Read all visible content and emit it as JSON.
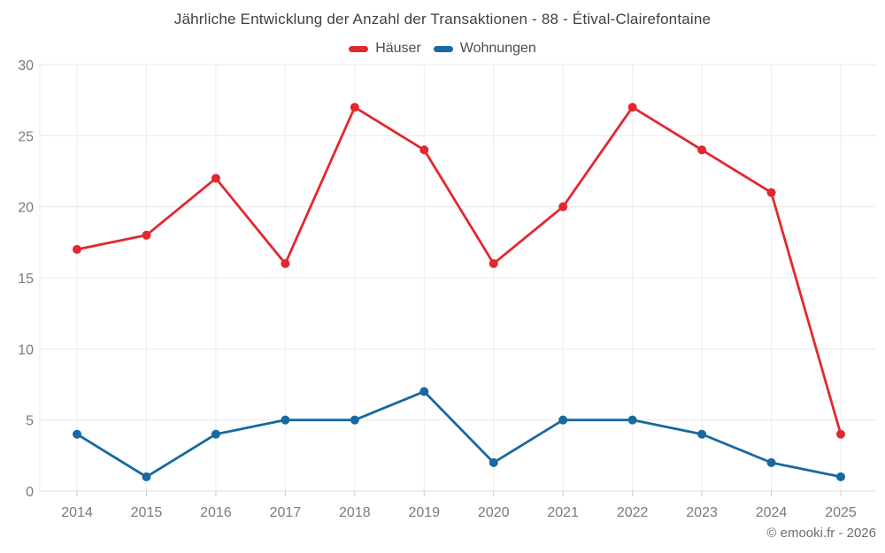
{
  "title": "Jährliche Entwicklung der Anzahl der Transaktionen - 88 - Étival-Clairefontaine",
  "footer": "© emooki.fr - 2026",
  "colors": {
    "hauser_red": "#e2282d",
    "wohnungen_blue": "#1769a0",
    "grid_h": "#e8e8e8",
    "grid_v": "#ededed",
    "axis_line": "#dcdcdc",
    "tick": "#c9c9c9",
    "axis_label": "#7a7a7a"
  },
  "chart_data": {
    "type": "line",
    "title": "Jährliche Entwicklung der Anzahl der Transaktionen - 88 - Étival-Clairefontaine",
    "categories": [
      "2014",
      "2015",
      "2016",
      "2017",
      "2018",
      "2019",
      "2020",
      "2021",
      "2022",
      "2023",
      "2024",
      "2025"
    ],
    "series": [
      {
        "name": "Häuser",
        "color": "#e2282d",
        "values": [
          17,
          18,
          22,
          16,
          27,
          24,
          16,
          20,
          27,
          24,
          21,
          4
        ]
      },
      {
        "name": "Wohnungen",
        "color": "#1769a0",
        "values": [
          4,
          1,
          4,
          5,
          5,
          7,
          2,
          5,
          5,
          4,
          2,
          1
        ]
      }
    ],
    "xlabel": "",
    "ylabel": "",
    "ylim": [
      0,
      30
    ],
    "ytick_step": 5,
    "yticks": [
      0,
      5,
      10,
      15,
      20,
      25,
      30
    ],
    "grid": true,
    "legend_position": "top",
    "marker": "circle"
  }
}
